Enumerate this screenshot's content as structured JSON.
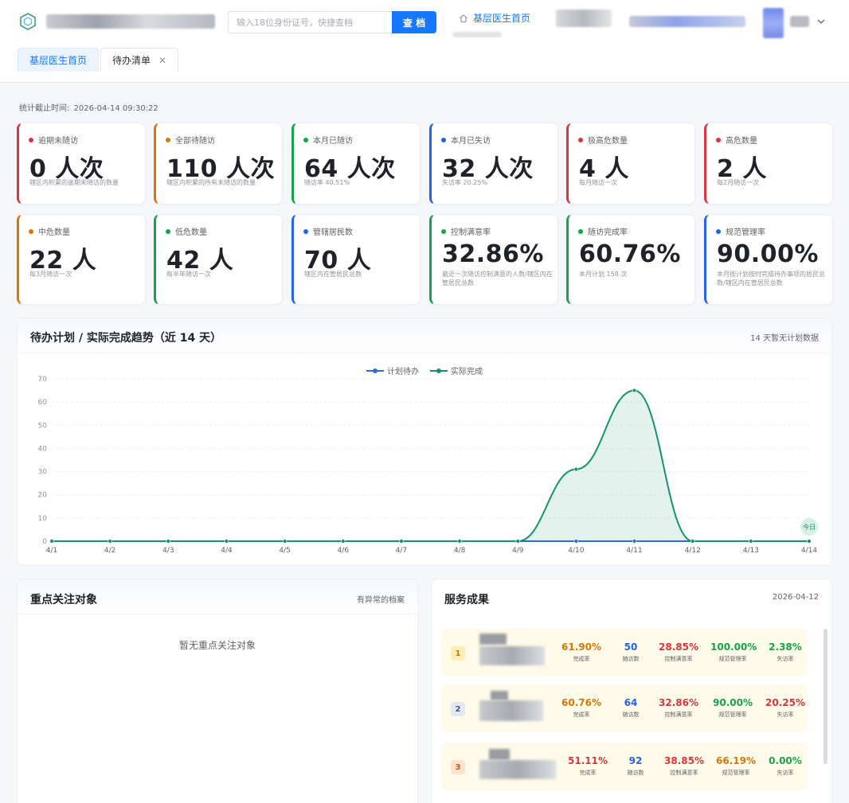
{
  "header": {
    "search_placeholder": "输入18位身份证号，快捷查档",
    "search_button": "查 档",
    "nav_home": "基层医生首页"
  },
  "tabs": [
    {
      "label": "基层医生首页"
    },
    {
      "label": "待办清单"
    }
  ],
  "stat_time": {
    "label": "统计截止时间:",
    "value": "2026-04-14 09:30:22"
  },
  "cards": [
    {
      "label": "逾期未随访",
      "value": "0 人次",
      "sub": "辖区内积累的逾期未随访的数量",
      "color": "#d9363e"
    },
    {
      "label": "全部待随访",
      "value": "110 人次",
      "sub": "辖区内积累的所有未随访的数量",
      "color": "#d97706"
    },
    {
      "label": "本月已随访",
      "value": "64 人次",
      "sub": "随访率 40.51%",
      "color": "#16a34a"
    },
    {
      "label": "本月已失访",
      "value": "32 人次",
      "sub": "失访率 20.25%",
      "color": "#2563eb"
    },
    {
      "label": "极高危数量",
      "value": "4 人",
      "sub": "每月随访一次",
      "color": "#d9363e"
    },
    {
      "label": "高危数量",
      "value": "2 人",
      "sub": "每2月随访一次",
      "color": "#d9363e"
    },
    {
      "label": "中危数量",
      "value": "22 人",
      "sub": "每3月随访一次",
      "color": "#d97706"
    },
    {
      "label": "低危数量",
      "value": "42 人",
      "sub": "每半年随访一次",
      "color": "#16a34a"
    },
    {
      "label": "管辖居民数",
      "value": "70 人",
      "sub": "辖区内在管居民总数",
      "color": "#2563eb"
    },
    {
      "label": "控制满意率",
      "value": "32.86%",
      "sub": "最近一次随访控制满意的人数/辖区内在管居民总数",
      "color": "#16a34a"
    },
    {
      "label": "随访完成率",
      "value": "60.76%",
      "sub": "本月计划 158 次",
      "color": "#16a34a"
    },
    {
      "label": "规范管理率",
      "value": "90.00%",
      "sub": "本月按计划按时完成待办事项的居民总数/辖区内在管居民总数",
      "color": "#2563eb"
    }
  ],
  "trend_panel": {
    "title": "待办计划 / 实际完成趋势（近 14 天）",
    "note": "14 天暂无计划数据"
  },
  "chart_data": {
    "type": "line",
    "categories": [
      "4/1",
      "4/2",
      "4/3",
      "4/4",
      "4/5",
      "4/6",
      "4/7",
      "4/8",
      "4/9",
      "4/10",
      "4/11",
      "4/12",
      "4/13",
      "4/14"
    ],
    "series": [
      {
        "name": "计划待办",
        "values": [
          0,
          0,
          0,
          0,
          0,
          0,
          0,
          0,
          0,
          0,
          0,
          0,
          0,
          0
        ],
        "color": "#2f6bd8"
      },
      {
        "name": "实际完成",
        "values": [
          0,
          0,
          0,
          0,
          0,
          0,
          0,
          0,
          0,
          31,
          65,
          0,
          0,
          0
        ],
        "color": "#15936a"
      }
    ],
    "ylim": [
      0,
      70
    ],
    "yticks": [
      0,
      10,
      20,
      30,
      40,
      50,
      60,
      70
    ],
    "marker_label": "今日",
    "area_fill": true
  },
  "focus_panel": {
    "title": "重点关注对象",
    "note": "有异常的档案",
    "empty": "暂无重点关注对象"
  },
  "service_panel": {
    "title": "服务成果",
    "date": "2026-04-12",
    "rows": [
      {
        "rank": "1",
        "metrics": [
          {
            "value": "61.90%",
            "label": "完成率",
            "color": "#d97706"
          },
          {
            "value": "50",
            "label": "随访数",
            "color": "#2563eb"
          },
          {
            "value": "28.85%",
            "label": "控制满意率",
            "color": "#d9363e"
          },
          {
            "value": "100.00%",
            "label": "规范管理率",
            "color": "#16a34a"
          },
          {
            "value": "2.38%",
            "label": "失访率",
            "color": "#16a34a"
          }
        ]
      },
      {
        "rank": "2",
        "metrics": [
          {
            "value": "60.76%",
            "label": "完成率",
            "color": "#d97706"
          },
          {
            "value": "64",
            "label": "随访数",
            "color": "#2563eb"
          },
          {
            "value": "32.86%",
            "label": "控制满意率",
            "color": "#d9363e"
          },
          {
            "value": "90.00%",
            "label": "规范管理率",
            "color": "#16a34a"
          },
          {
            "value": "20.25%",
            "label": "失访率",
            "color": "#d9363e"
          }
        ]
      },
      {
        "rank": "3",
        "metrics": [
          {
            "value": "51.11%",
            "label": "完成率",
            "color": "#d9363e"
          },
          {
            "value": "92",
            "label": "随访数",
            "color": "#2563eb"
          },
          {
            "value": "38.85%",
            "label": "控制满意率",
            "color": "#d9363e"
          },
          {
            "value": "66.19%",
            "label": "规范管理率",
            "color": "#d97706"
          },
          {
            "value": "0.00%",
            "label": "失访率",
            "color": "#16a34a"
          }
        ]
      }
    ]
  }
}
